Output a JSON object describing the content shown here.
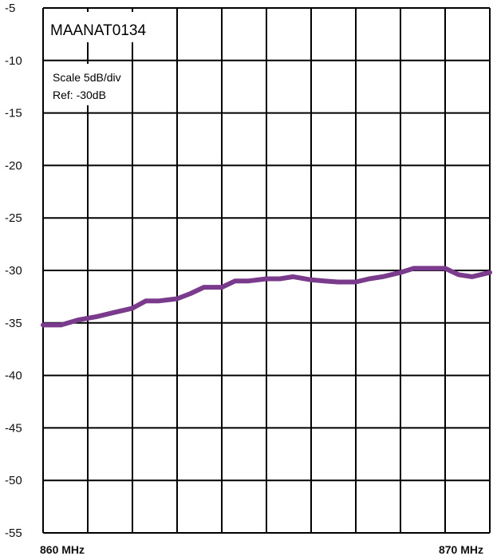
{
  "chart_data": {
    "type": "line",
    "title": "MAANAT0134",
    "scale_label": "Scale 5dB/div",
    "ref_label": "Ref: -30dB",
    "ylim": [
      -55,
      -5
    ],
    "yticks": [
      -5,
      -10,
      -15,
      -20,
      -25,
      -30,
      -35,
      -40,
      -45,
      -50,
      -55
    ],
    "ytick_labels": [
      "-5",
      "-10",
      "-15",
      "-20",
      "-25",
      "-30",
      "-35",
      "-40",
      "-45",
      "-50",
      "-55"
    ],
    "xlim": [
      860,
      870
    ],
    "x_unit": "MHz",
    "x_labels": [
      {
        "value": 860,
        "text": "860 MHz"
      },
      {
        "value": 870,
        "text": "870 MHz"
      }
    ],
    "grid": true,
    "line_color": "#7a3b8c",
    "series": [
      {
        "x": [
          860.0,
          860.4,
          860.8,
          861.2,
          861.6,
          862.0,
          862.3,
          862.6,
          863.0,
          863.3,
          863.6,
          864.0,
          864.3,
          864.6,
          865.0,
          865.3,
          865.6,
          866.0,
          866.3,
          866.6,
          867.0,
          867.3,
          867.6,
          868.0,
          868.3,
          868.6,
          869.0,
          869.3,
          869.6,
          870.0
        ],
        "y": [
          -35.2,
          -35.2,
          -34.7,
          -34.4,
          -34.0,
          -33.6,
          -32.9,
          -32.9,
          -32.7,
          -32.2,
          -31.6,
          -31.6,
          -31.0,
          -31.0,
          -30.8,
          -30.8,
          -30.6,
          -30.9,
          -31.0,
          -31.1,
          -31.1,
          -30.8,
          -30.6,
          -30.2,
          -29.8,
          -29.8,
          -29.8,
          -30.4,
          -30.6,
          -30.2
        ]
      }
    ]
  }
}
